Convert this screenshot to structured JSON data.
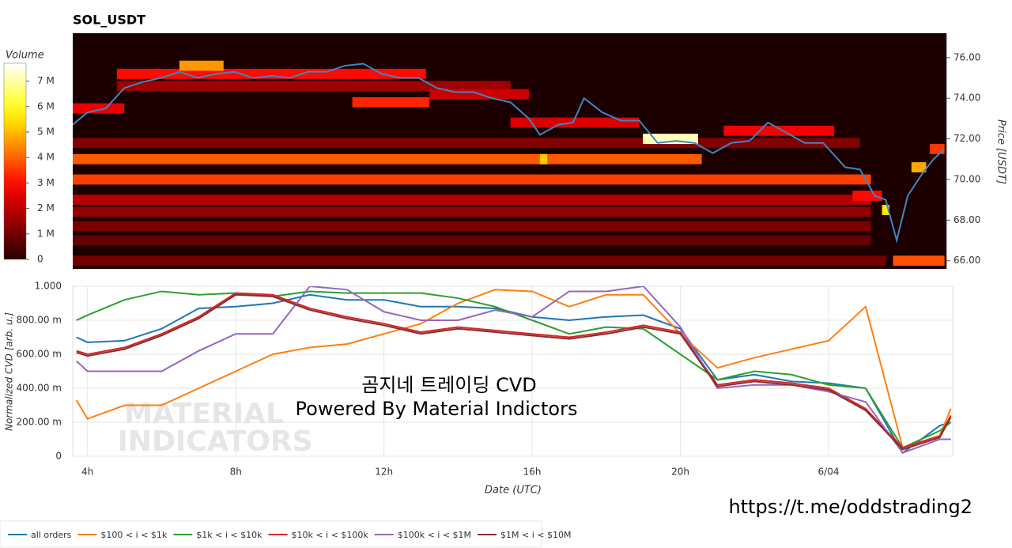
{
  "chart_data": [
    {
      "type": "heatmap",
      "title": "SOL_USDT",
      "colorbar_label": "Volume",
      "ylabel": "Price [USDT]",
      "xlim": [
        3.6,
        27.35
      ],
      "ylim": [
        65.6,
        77.2
      ],
      "yticks": [
        {
          "value": 66,
          "label": "66.00"
        },
        {
          "value": 68,
          "label": "68.00"
        },
        {
          "value": 70,
          "label": "70.00"
        },
        {
          "value": 72,
          "label": "72.00"
        },
        {
          "value": 74,
          "label": "74.00"
        },
        {
          "value": 76,
          "label": "76.00"
        }
      ],
      "zlim": [
        0,
        7700000
      ],
      "zticks": [
        0,
        {
          "value": 1000000,
          "label": "1 M"
        },
        {
          "value": 2000000,
          "label": "2 M"
        },
        {
          "value": 3000000,
          "label": "3 M"
        },
        {
          "value": 4000000,
          "label": "4 M"
        },
        {
          "value": 5000000,
          "label": "5 M"
        },
        {
          "value": 6000000,
          "label": "6 M"
        },
        {
          "value": 7000000,
          "label": "7 M"
        }
      ],
      "colormap": "hot",
      "background": "#1c0000",
      "cell_height": 0.5,
      "levels": {
        "price": [
          71.0,
          71.0,
          70.0,
          69.0,
          68.4,
          67.7,
          67.0,
          66.0,
          66.0,
          71.8,
          73.8,
          72.0,
          75.2,
          75.6,
          74.6,
          73.5,
          72.8,
          72.4,
          70.6,
          69.2,
          68.5,
          71.5,
          74.2
        ],
        "start": [
          3.6,
          16.3,
          3.6,
          3.6,
          3.6,
          3.6,
          3.6,
          3.6,
          25.9,
          3.6,
          11.2,
          19.1,
          4.8,
          6.5,
          4.8,
          3.6,
          15.5,
          21.3,
          26.4,
          24.8,
          25.6,
          26.9,
          13.3
        ],
        "end": [
          20.7,
          16.5,
          25.3,
          25.3,
          25.3,
          25.3,
          25.3,
          25.7,
          27.3,
          25.0,
          13.3,
          20.6,
          13.2,
          7.7,
          15.5,
          5.0,
          19.0,
          24.3,
          26.8,
          25.6,
          25.8,
          27.3,
          16.0
        ],
        "volume": [
          3900000,
          5200000,
          3600000,
          1900000,
          1400000,
          1100000,
          800000,
          1000000,
          3800000,
          1200000,
          3300000,
          7200000,
          3000000,
          4600000,
          1600000,
          2600000,
          2400000,
          2800000,
          4800000,
          3000000,
          5500000,
          3500000,
          2200000
        ]
      },
      "price": {
        "color": "#3d85c6",
        "x": [
          3.6,
          4.0,
          4.5,
          5.0,
          5.5,
          6.0,
          6.5,
          7.0,
          7.5,
          8.0,
          8.5,
          9.0,
          9.5,
          10.0,
          10.5,
          11.0,
          11.5,
          12.0,
          12.5,
          13.0,
          13.5,
          14.0,
          14.5,
          15.0,
          15.5,
          16.0,
          16.3,
          16.8,
          17.2,
          17.5,
          18.0,
          18.5,
          19.0,
          19.5,
          20.0,
          20.5,
          21.0,
          21.5,
          22.0,
          22.5,
          23.0,
          23.5,
          24.0,
          24.3,
          24.6,
          25.0,
          25.4,
          25.7,
          26.0,
          26.3,
          26.7,
          27.0,
          27.3
        ],
        "values": [
          72.7,
          73.3,
          73.5,
          74.5,
          74.8,
          75.0,
          75.3,
          75.0,
          75.2,
          75.3,
          75.0,
          75.1,
          75.0,
          75.3,
          75.3,
          75.6,
          75.7,
          75.2,
          75.0,
          75.0,
          74.5,
          74.3,
          74.3,
          74.0,
          73.8,
          73.0,
          72.2,
          72.7,
          72.8,
          74.0,
          73.3,
          72.9,
          72.9,
          71.8,
          71.9,
          71.8,
          71.3,
          71.8,
          71.9,
          72.8,
          72.3,
          71.8,
          71.8,
          71.2,
          70.6,
          70.5,
          69.2,
          69.0,
          67.0,
          69.2,
          70.3,
          71.0,
          71.5
        ]
      }
    },
    {
      "type": "line",
      "ylabel": "Normalized CVD [arb. u.]",
      "xlabel": "Date (UTC)",
      "xlim": [
        3.6,
        27.35
      ],
      "ylim": [
        0,
        1.0
      ],
      "xticks": [
        {
          "value": 4,
          "label": "4h"
        },
        {
          "value": 8,
          "label": "8h"
        },
        {
          "value": 12,
          "label": "12h"
        },
        {
          "value": 16,
          "label": "16h"
        },
        {
          "value": 20,
          "label": "20h"
        },
        {
          "value": 24,
          "label": "6/04"
        }
      ],
      "yticks": [
        0,
        {
          "value": 0.2,
          "label": "200.00 m"
        },
        {
          "value": 0.4,
          "label": "400.00 m"
        },
        {
          "value": 0.6,
          "label": "600.00 m"
        },
        {
          "value": 0.8,
          "label": "800.00 m"
        },
        {
          "value": 1.0,
          "label": "1.000"
        }
      ],
      "grid": true,
      "x": [
        3.7,
        4,
        5,
        6,
        7,
        8,
        9,
        10,
        11,
        12,
        13,
        14,
        15,
        16,
        17,
        18,
        19,
        20,
        21,
        22,
        23,
        24,
        25,
        26,
        27,
        27.3
      ],
      "series": [
        {
          "name": "all orders",
          "color": "#1f77b4",
          "values": [
            0.7,
            0.67,
            0.68,
            0.75,
            0.87,
            0.88,
            0.9,
            0.95,
            0.92,
            0.92,
            0.88,
            0.88,
            0.87,
            0.82,
            0.8,
            0.82,
            0.83,
            0.75,
            0.45,
            0.48,
            0.44,
            0.43,
            0.4,
            0.02,
            0.18,
            0.2
          ]
        },
        {
          "name": "$100 < i < $1k",
          "color": "#ff7f0e",
          "values": [
            0.33,
            0.22,
            0.3,
            0.3,
            0.4,
            0.5,
            0.6,
            0.64,
            0.66,
            0.72,
            0.78,
            0.9,
            0.98,
            0.97,
            0.88,
            0.95,
            0.95,
            0.72,
            0.52,
            0.58,
            0.63,
            0.68,
            0.88,
            0.05,
            0.12,
            0.28
          ]
        },
        {
          "name": "$1k < i < $10k",
          "color": "#2ca02c",
          "values": [
            0.8,
            0.83,
            0.92,
            0.97,
            0.95,
            0.96,
            0.94,
            0.97,
            0.96,
            0.96,
            0.96,
            0.93,
            0.88,
            0.8,
            0.72,
            0.76,
            0.75,
            0.6,
            0.45,
            0.5,
            0.48,
            0.42,
            0.4,
            0.05,
            0.15,
            0.2
          ]
        },
        {
          "name": "$10k < i < $100k",
          "color": "#d62728",
          "values": [
            0.62,
            0.6,
            0.64,
            0.72,
            0.82,
            0.96,
            0.95,
            0.87,
            0.82,
            0.78,
            0.73,
            0.76,
            0.74,
            0.72,
            0.7,
            0.73,
            0.77,
            0.73,
            0.42,
            0.45,
            0.43,
            0.4,
            0.28,
            0.05,
            0.12,
            0.24
          ]
        },
        {
          "name": "$100k < i < $1M",
          "color": "#9467bd",
          "values": [
            0.56,
            0.5,
            0.5,
            0.5,
            0.62,
            0.72,
            0.72,
            1.0,
            0.98,
            0.85,
            0.8,
            0.8,
            0.86,
            0.82,
            0.97,
            0.97,
            1.0,
            0.76,
            0.4,
            0.42,
            0.42,
            0.38,
            0.32,
            0.02,
            0.1,
            0.1
          ]
        },
        {
          "name": "$1M < i < $10M",
          "color": "#8c2d2d",
          "values": [
            0.61,
            0.59,
            0.63,
            0.71,
            0.81,
            0.95,
            0.94,
            0.86,
            0.81,
            0.77,
            0.72,
            0.75,
            0.73,
            0.71,
            0.69,
            0.72,
            0.76,
            0.72,
            0.41,
            0.44,
            0.42,
            0.39,
            0.27,
            0.04,
            0.11,
            0.23
          ]
        }
      ],
      "watermark": [
        "MATERIAL",
        "INDICATORS"
      ],
      "caption": [
        "곰지네 트레이딩 CVD",
        "Powered By Material Indictors"
      ],
      "link": "https://t.me/oddstrading2"
    }
  ]
}
